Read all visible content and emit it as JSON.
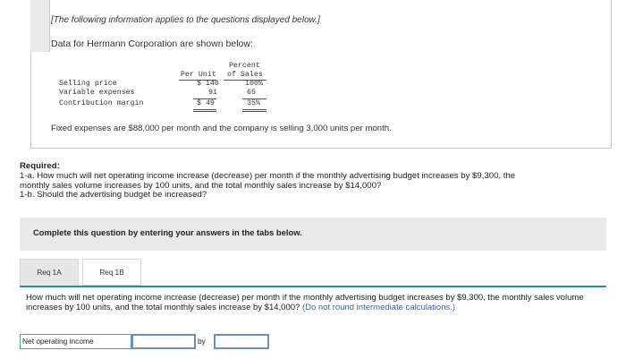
{
  "info": {
    "intro": "[The following information applies to the questions displayed below.]",
    "data_line": "Data for Hermann Corporation are shown below:",
    "table": {
      "col_percent_top": "Percent",
      "col_per_unit": "Per Unit",
      "col_of_sales": "of Sales",
      "rows": [
        {
          "label": "Selling price",
          "per_unit": "$ 140",
          "percent": "100%"
        },
        {
          "label": "Variable expenses",
          "per_unit": "91",
          "percent": "65"
        },
        {
          "label": "Contribution margin",
          "per_unit": "$ 49",
          "percent": "35%"
        }
      ]
    },
    "fixed_line": "Fixed expenses are $88,000 per month and the company is selling 3,000 units per month."
  },
  "required": {
    "title": "Required:",
    "line1": "1-a. How much will net operating income increase (decrease) per month if the monthly advertising budget increases by $9,300, the",
    "line2": "monthly sales volume increases by 100 units, and the total monthly sales increase by $14,000?",
    "line3": "1-b. Should the advertising budget be increased?"
  },
  "instruction": "Complete this question by entering your answers in the tabs below.",
  "tabs": [
    {
      "label": "Req 1A"
    },
    {
      "label": "Req 1B"
    }
  ],
  "answer": {
    "question_text": "How much will net operating income increase (decrease) per month if the monthly advertising budget increases by $9,300, the monthly sales volume increases by 100 units, and the total monthly sales increase by $14,000?",
    "hint": "(Do not round intermediate calculations.)",
    "row_label": "Net operating income",
    "select_value": "",
    "by_label": "by",
    "input_value": ""
  }
}
